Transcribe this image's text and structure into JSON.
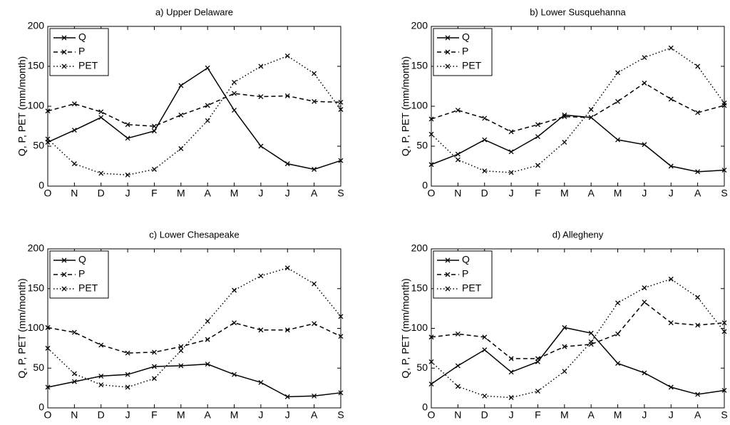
{
  "chart_data": [
    {
      "type": "line",
      "title": "a) Upper Delaware",
      "ylabel": "Q, P, PET (mm/month)",
      "categories": [
        "O",
        "N",
        "D",
        "J",
        "F",
        "M",
        "A",
        "M",
        "J",
        "J",
        "A",
        "S"
      ],
      "series": [
        {
          "name": "Q",
          "color": "#000000",
          "style": "solid",
          "values": [
            55,
            70,
            86,
            60,
            69,
            126,
            148,
            95,
            50,
            28,
            21,
            32
          ]
        },
        {
          "name": "P",
          "color": "#000000",
          "style": "dashed",
          "values": [
            94,
            103,
            93,
            77,
            75,
            89,
            101,
            116,
            112,
            113,
            106,
            105
          ]
        },
        {
          "name": "PET",
          "color": "#000000",
          "style": "dotted",
          "values": [
            59,
            28,
            16,
            14,
            21,
            47,
            82,
            130,
            150,
            163,
            141,
            96
          ]
        }
      ],
      "ylim": [
        0,
        200
      ],
      "yticks": [
        0,
        50,
        100,
        150,
        200
      ],
      "legend": "upper-left"
    },
    {
      "type": "line",
      "title": "b) Lower Susquehanna",
      "ylabel": "Q, P, PET (mm/month)",
      "categories": [
        "O",
        "N",
        "D",
        "J",
        "F",
        "M",
        "A",
        "M",
        "J",
        "J",
        "A",
        "S"
      ],
      "series": [
        {
          "name": "Q",
          "color": "#000000",
          "style": "solid",
          "values": [
            27,
            40,
            58,
            43,
            62,
            89,
            86,
            58,
            52,
            25,
            18,
            20
          ]
        },
        {
          "name": "P",
          "color": "#000000",
          "style": "dashed",
          "values": [
            84,
            95,
            85,
            68,
            77,
            87,
            86,
            106,
            129,
            109,
            92,
            101
          ]
        },
        {
          "name": "PET",
          "color": "#000000",
          "style": "dotted",
          "values": [
            65,
            33,
            19,
            17,
            26,
            55,
            96,
            142,
            161,
            173,
            150,
            104
          ]
        }
      ],
      "ylim": [
        0,
        200
      ],
      "yticks": [
        0,
        50,
        100,
        150,
        200
      ],
      "legend": "upper-left"
    },
    {
      "type": "line",
      "title": "c) Lower Chesapeake",
      "ylabel": "Q, P, PET (mm/month)",
      "categories": [
        "O",
        "N",
        "D",
        "J",
        "F",
        "M",
        "A",
        "M",
        "J",
        "J",
        "A",
        "S"
      ],
      "series": [
        {
          "name": "Q",
          "color": "#000000",
          "style": "solid",
          "values": [
            26,
            33,
            40,
            42,
            52,
            53,
            55,
            42,
            32,
            14,
            15,
            19
          ]
        },
        {
          "name": "P",
          "color": "#000000",
          "style": "dashed",
          "values": [
            101,
            95,
            79,
            69,
            70,
            77,
            86,
            107,
            98,
            98,
            106,
            90
          ]
        },
        {
          "name": "PET",
          "color": "#000000",
          "style": "dotted",
          "values": [
            75,
            43,
            29,
            26,
            37,
            72,
            109,
            148,
            166,
            176,
            156,
            115
          ]
        }
      ],
      "ylim": [
        0,
        200
      ],
      "yticks": [
        0,
        50,
        100,
        150,
        200
      ],
      "legend": "upper-left"
    },
    {
      "type": "line",
      "title": "d) Allegheny",
      "ylabel": "Q, P, PET (mm/month)",
      "categories": [
        "O",
        "N",
        "D",
        "J",
        "F",
        "M",
        "A",
        "M",
        "J",
        "J",
        "A",
        "S"
      ],
      "series": [
        {
          "name": "Q",
          "color": "#000000",
          "style": "solid",
          "values": [
            30,
            53,
            73,
            45,
            58,
            101,
            94,
            56,
            44,
            26,
            17,
            22
          ]
        },
        {
          "name": "P",
          "color": "#000000",
          "style": "dashed",
          "values": [
            89,
            93,
            89,
            62,
            62,
            77,
            80,
            93,
            133,
            107,
            104,
            107
          ]
        },
        {
          "name": "PET",
          "color": "#000000",
          "style": "dotted",
          "values": [
            58,
            27,
            15,
            13,
            21,
            46,
            83,
            132,
            151,
            162,
            139,
            96
          ]
        }
      ],
      "ylim": [
        0,
        200
      ],
      "yticks": [
        0,
        50,
        100,
        150,
        200
      ],
      "legend": "upper-left"
    }
  ]
}
